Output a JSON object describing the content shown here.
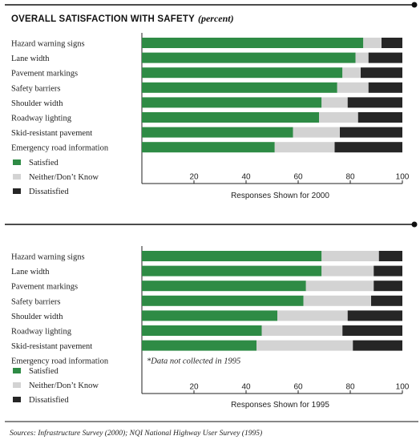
{
  "header": {
    "title": "OVERALL SATISFACTION WITH SAFETY",
    "subtitle": "(percent)"
  },
  "source": "Sources: Infrastructure Survey (2000); NQI National Highway User Survey (1995)",
  "colors": {
    "satisfied": "#2e8b45",
    "neither": "#d3d3d3",
    "dissatisfied": "#262626",
    "rule": "#111111"
  },
  "chart_data": [
    {
      "type": "bar",
      "stacked": true,
      "orientation": "horizontal",
      "xlabel": "Responses Shown for 2000",
      "xlim": [
        0,
        100
      ],
      "ticks": [
        20,
        40,
        60,
        80,
        100
      ],
      "legend_position": "bottom-left",
      "categories": [
        "Hazard warning signs",
        "Lane width",
        "Pavement markings",
        "Safety barriers",
        "Shoulder width",
        "Roadway lighting",
        "Skid-resistant pavement",
        "Emergency road information"
      ],
      "series": [
        {
          "name": "Satisfied",
          "values": [
            85,
            82,
            77,
            75,
            69,
            68,
            58,
            51
          ]
        },
        {
          "name": "Neither/Don’t Know",
          "values": [
            7,
            5,
            7,
            12,
            10,
            15,
            18,
            23
          ]
        },
        {
          "name": "Dissatisfied",
          "values": [
            8,
            13,
            16,
            13,
            21,
            17,
            24,
            26
          ]
        }
      ],
      "note": ""
    },
    {
      "type": "bar",
      "stacked": true,
      "orientation": "horizontal",
      "xlabel": "Responses Shown for 1995",
      "xlim": [
        0,
        100
      ],
      "ticks": [
        20,
        40,
        60,
        80,
        100
      ],
      "legend_position": "bottom-left",
      "categories": [
        "Hazard warning signs",
        "Lane width",
        "Pavement markings",
        "Safety barriers",
        "Shoulder width",
        "Roadway lighting",
        "Skid-resistant pavement",
        "Emergency road information"
      ],
      "series": [
        {
          "name": "Satisfied",
          "values": [
            69,
            69,
            63,
            62,
            52,
            46,
            44,
            null
          ]
        },
        {
          "name": "Neither/Don’t Know",
          "values": [
            22,
            20,
            26,
            26,
            27,
            31,
            37,
            null
          ]
        },
        {
          "name": "Dissatisfied",
          "values": [
            9,
            11,
            11,
            12,
            21,
            23,
            19,
            null
          ]
        }
      ],
      "note": "*Data not collected in 1995"
    }
  ]
}
